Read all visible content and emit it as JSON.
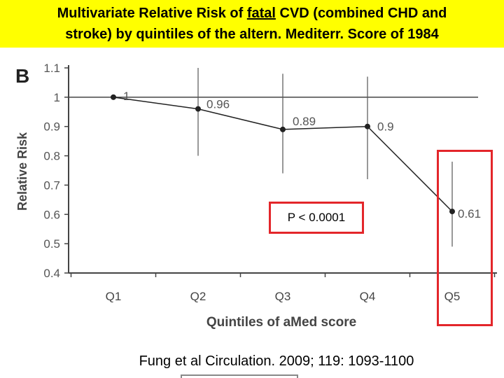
{
  "banner": {
    "line1_a": "Multivariate Relative Risk of ",
    "line1_u": "fatal",
    "line1_b": " CVD (combined CHD and",
    "line2": "stroke) by quintiles of the altern. Mediterr. Score  of 1984"
  },
  "panel_letter": "B",
  "p_value": "P < 0.0001",
  "citation": "Fung et al  Circulation. 2009; 119: 1093-1100",
  "chart_data": {
    "type": "line",
    "title": "",
    "xlabel": "Quintiles of aMed score",
    "ylabel": "Relative Risk",
    "categories": [
      "Q1",
      "Q2",
      "Q3",
      "Q4",
      "Q5"
    ],
    "values": [
      1,
      0.96,
      0.89,
      0.9,
      0.61
    ],
    "value_labels": [
      "1",
      "0.96",
      "0.89",
      "0.9",
      "0.61"
    ],
    "ci_low": [
      null,
      0.8,
      0.74,
      0.72,
      0.49
    ],
    "ci_high": [
      null,
      1.1,
      1.08,
      1.07,
      0.78
    ],
    "reference_line": 1,
    "ylim": [
      0.4,
      1.1
    ],
    "yticks": [
      "1.1",
      "1",
      "0.9",
      "0.8",
      "0.7",
      "0.6",
      "0.5",
      "0.4"
    ],
    "ytick_values": [
      1.1,
      1.0,
      0.9,
      0.8,
      0.7,
      0.6,
      0.5,
      0.4
    ]
  },
  "colors": {
    "banner_bg": "#ffff00",
    "highlight": "#e3262a",
    "axis": "#444444"
  }
}
